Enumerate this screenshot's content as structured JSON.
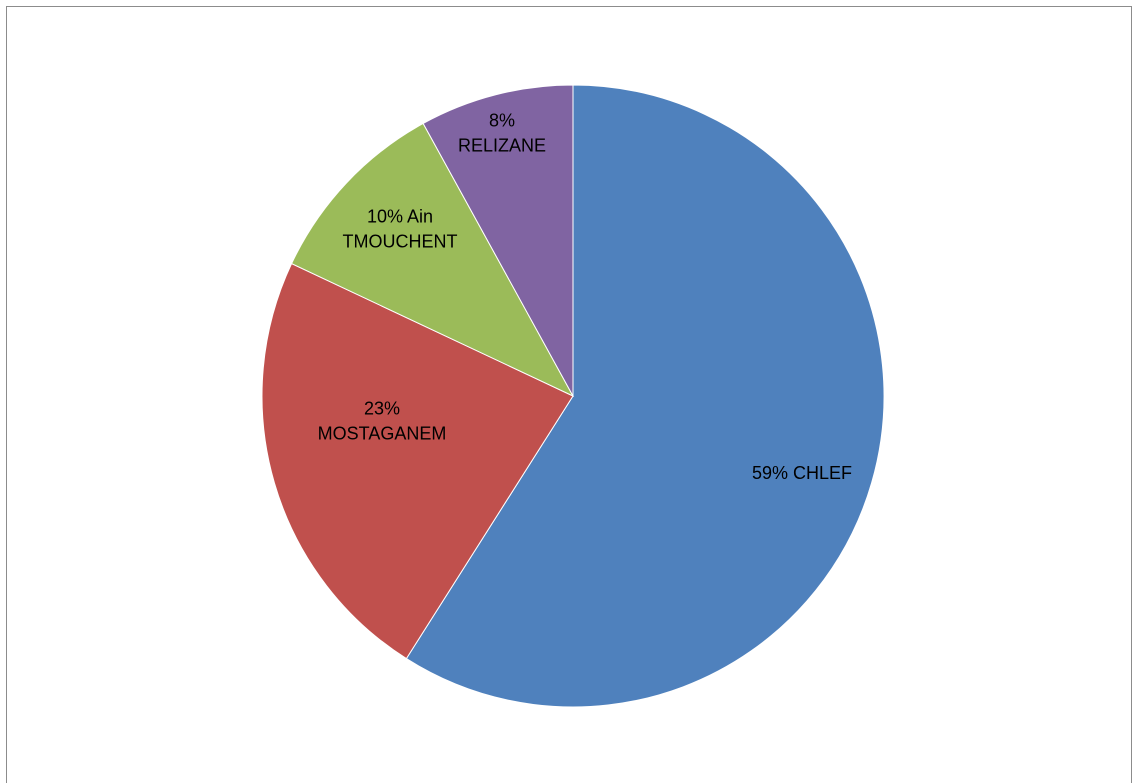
{
  "chart_data": {
    "type": "pie",
    "title": "",
    "start": "top",
    "direction": "clockwise",
    "legend": "none",
    "slices": [
      {
        "label": "CHLEF",
        "value": 59,
        "color": "#4f81bd",
        "label_lines": [
          "59% CHLEF"
        ]
      },
      {
        "label": "MOSTAGANEM",
        "value": 23,
        "color": "#c0504d",
        "label_lines": [
          "23%",
          "MOSTAGANEM"
        ]
      },
      {
        "label": "Ain TMOUCHENT",
        "value": 10,
        "color": "#9bbb59",
        "label_lines": [
          "10% Ain",
          "TMOUCHENT"
        ]
      },
      {
        "label": "RELIZANE",
        "value": 8,
        "color": "#8064a2",
        "label_lines": [
          "8%",
          "RELIZANE"
        ]
      }
    ]
  }
}
